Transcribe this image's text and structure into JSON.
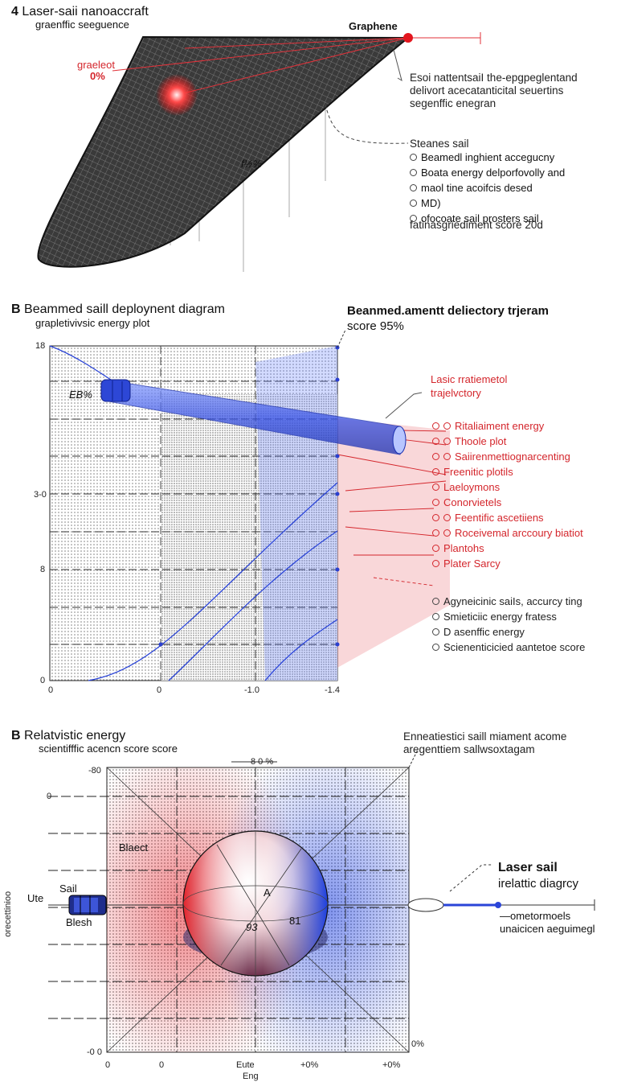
{
  "panel_a": {
    "letter": "4",
    "title": "Laser-saii nanoaccraft",
    "subtitle": "graenffic seeguence",
    "graphene_label": "Graphene",
    "red_label_1": "graeleot",
    "red_label_2": "0%",
    "mid_label": "f½%",
    "note_lines": [
      "Esoi nattentsaiI the-epgpeglentand",
      "delivort acecatanticital seuertins",
      "segenffic enegran"
    ],
    "list_title": "Steanes sail",
    "list_items": [
      "Beamedl inghient accegucny",
      "Boata energy delporfovolly and",
      "maol tine acoifcis desed",
      "MD)",
      "ofocoate sail prosters sail"
    ],
    "list_footer": "fatinasgriediment score 20d"
  },
  "panel_b": {
    "letter": "B",
    "title": "Beammed saill deploynent diagram",
    "subtitle": "grapletivivsic energy plot",
    "right_title": "Beanmed.amentt deliectory trjeram",
    "right_subtitle": "score 95%",
    "cyl_label": "EB%",
    "y_ticks": [
      "18",
      "3-0",
      "8",
      "0"
    ],
    "x_ticks": [
      "0",
      "0",
      "-1.0",
      "-1.4"
    ],
    "callout_1": "Lasic rratiemetol",
    "callout_2": "trajelvctory",
    "red_items": [
      "Ritaliaiment energy",
      "Thoole plot",
      "Saiirenmettiognarcenting",
      "Freenitic plotils",
      "Laeloymons",
      "Conorvietels",
      "Feentific ascetiiens",
      "Roceivemal arccoury biatiot",
      "Plantohs",
      "Plater Sarcy"
    ],
    "gray_items": [
      "Agyneicinic saiIs, accurcy ting",
      "Smieticiic energy fratess",
      "D asenffic energy",
      "Scienenticicied aantetoe score"
    ]
  },
  "panel_c": {
    "letter": "B",
    "title": "Relatvistic energy",
    "subtitle": "scientifffic acencn score score",
    "right_title": "Enneatiestici saill miament acome",
    "right_subtitle": "aregenttiem sallwsoxtagam",
    "top_tick": "8 0 %",
    "y_ticks": [
      "-80",
      "0",
      "-0 0"
    ],
    "x_ticks": [
      "0",
      "0",
      "Eute",
      "+0%",
      "+0%"
    ],
    "x_label": "Eng",
    "y_axis_label": "orecettinioo",
    "sail_label": "Sail",
    "left_label": "Ute",
    "blesh_label": "Blesh",
    "object_label": "Blaect",
    "sphere_label_a": "A",
    "sphere_label_b": "81",
    "sphere_label_c": "93",
    "corner_label": "0%",
    "laser_title": "Laser sail",
    "laser_subtitle": "irelattic diagrcy",
    "laser_note_1": "—ometormoels",
    "laser_note_2": "unaicicen aeguimegl"
  }
}
